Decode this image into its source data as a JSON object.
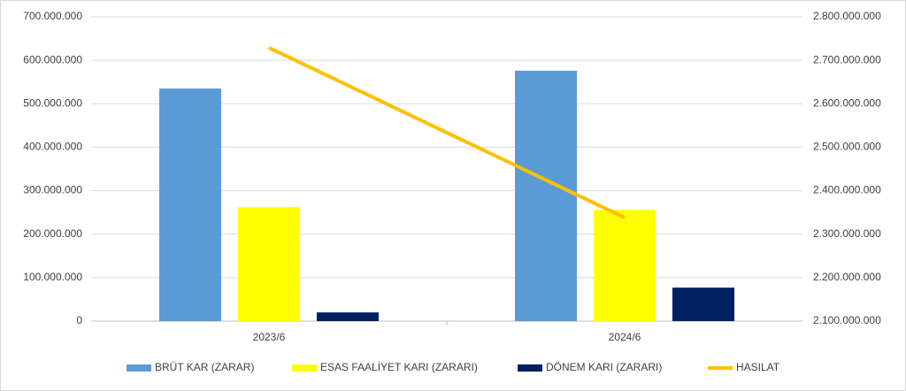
{
  "chart_data": {
    "type": "bar-line",
    "categories": [
      "2023/6",
      "2024/6"
    ],
    "series": [
      {
        "name": "BRÜT KAR (ZARAR)",
        "type": "bar",
        "color": "#5b9bd5",
        "values": [
          535000000,
          576000000
        ]
      },
      {
        "name": "ESAS FAALİYET KARI (ZARARI)",
        "type": "bar",
        "color": "#ffff00",
        "values": [
          262000000,
          256000000
        ]
      },
      {
        "name": "DÖNEM KARI (ZARARI)",
        "type": "bar",
        "color": "#002060",
        "values": [
          20000000,
          77000000
        ]
      },
      {
        "name": "HASILAT",
        "type": "line",
        "axis": "y2",
        "color": "#ffc000",
        "values": [
          2729000000,
          2338000000
        ]
      }
    ],
    "ylim": [
      0,
      700000000
    ],
    "yticks": [
      0,
      {
        "value": 100000000,
        "label": "100.000.000"
      },
      {
        "value": 200000000,
        "label": "200.000.000"
      },
      {
        "value": 300000000,
        "label": "300.000.000"
      },
      {
        "value": 400000000,
        "label": "400.000.000"
      },
      {
        "value": 500000000,
        "label": "500.000.000"
      },
      {
        "value": 600000000,
        "label": "600.000.000"
      },
      {
        "value": 700000000,
        "label": "700.000.000"
      }
    ],
    "y2lim": [
      2100000000,
      2800000000
    ],
    "y2ticks": [
      {
        "value": 2100000000,
        "label": "2.100.000.000"
      },
      {
        "value": 2200000000,
        "label": "2.200.000.000"
      },
      {
        "value": 2300000000,
        "label": "2.300.000.000"
      },
      {
        "value": 2400000000,
        "label": "2.400.000.000"
      },
      {
        "value": 2500000000,
        "label": "2.500.000.000"
      },
      {
        "value": 2600000000,
        "label": "2.600.000.000"
      },
      {
        "value": 2700000000,
        "label": "2.700.000.000"
      },
      {
        "value": 2800000000,
        "label": "2.800.000.000"
      }
    ],
    "grid": true,
    "legend": "bottom"
  }
}
